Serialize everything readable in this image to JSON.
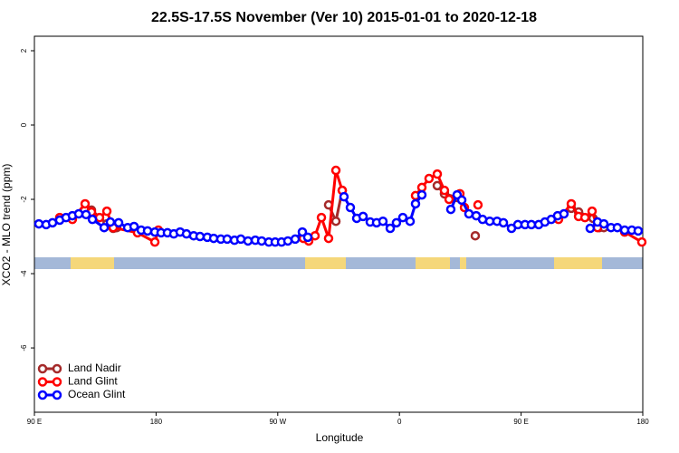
{
  "chart_data": {
    "type": "line",
    "title": "22.5S-17.5S November (Ver 10)   2015-01-01 to 2020-12-18",
    "xlabel": "Longitude",
    "ylabel": "XCO2 - MLO trend (ppm)",
    "xlim": [
      90,
      540
    ],
    "ylim": [
      -7.73,
      2.39
    ],
    "xticks": [
      {
        "value": 90,
        "label": "90 E"
      },
      {
        "value": 180,
        "label": "180"
      },
      {
        "value": 270,
        "label": "90 W"
      },
      {
        "value": 360,
        "label": "0"
      },
      {
        "value": 450,
        "label": "90 E"
      },
      {
        "value": 540,
        "label": "180"
      }
    ],
    "yticks": [
      -6,
      -4,
      -2,
      0,
      2
    ],
    "legend": "bottomleft",
    "series": [
      {
        "name": "Land Nadir",
        "color": "#a52a2a",
        "x": [
          132.2,
          143.6,
          148.3,
          150.9,
          null,
          307.6,
          313.0,
          317.7,
          null,
          388.0,
          393.3,
          402.7,
          null,
          416.1,
          null,
          487.1,
          492.5,
          503.2,
          507.9,
          511.2
        ],
        "values": [
          -2.29,
          -2.66,
          -2.78,
          -2.76,
          null,
          -2.15,
          -2.59,
          -1.76,
          null,
          -1.63,
          -1.85,
          -1.95,
          null,
          -2.98,
          null,
          -2.24,
          -2.34,
          -2.51,
          -2.76,
          -2.76
        ]
      },
      {
        "name": "Land Glint",
        "color": "#ff0000",
        "x": [
          108.7,
          118.1,
          127.5,
          132.2,
          138.2,
          143.6,
          148.3,
          166.3,
          179.1,
          181.7,
          null,
          288.9,
          292.9,
          297.6,
          302.3,
          307.6,
          313.0,
          317.7,
          null,
          371.9,
          376.6,
          381.9,
          388.0,
          393.3,
          396.7,
          404.7,
          408.1,
          null,
          418.1,
          null,
          477.7,
          487.1,
          492.5,
          497.2,
          502.5,
          506.5,
          null,
          526.6,
          539.3
        ],
        "values": [
          -2.49,
          -2.54,
          -2.12,
          -2.34,
          -2.49,
          -2.32,
          -2.76,
          -2.9,
          -3.15,
          -2.83,
          null,
          -3.05,
          -3.12,
          -2.98,
          -2.49,
          -3.05,
          -1.22,
          -1.76,
          null,
          -1.9,
          -1.68,
          -1.44,
          -1.32,
          -1.76,
          -2.0,
          -1.85,
          -2.22,
          null,
          -2.15,
          null,
          -2.54,
          -2.12,
          -2.46,
          -2.49,
          -2.32,
          -2.76,
          null,
          -2.88,
          -3.15
        ]
      },
      {
        "name": "Ocean Glint",
        "color": "#0000ff",
        "x": [
          93.3,
          98.7,
          103.4,
          108.7,
          113.4,
          118.1,
          122.8,
          128.2,
          132.9,
          141.6,
          146.2,
          152.3,
          159.0,
          163.7,
          169.0,
          173.7,
          179.1,
          183.7,
          188.4,
          193.1,
          197.8,
          202.5,
          207.8,
          212.5,
          217.9,
          222.6,
          227.9,
          232.6,
          238.0,
          242.7,
          248.0,
          253.4,
          258.1,
          263.4,
          268.1,
          272.8,
          277.5,
          282.9,
          288.2,
          292.2,
          null,
          319.0,
          323.7,
          328.4,
          333.1,
          338.4,
          343.1,
          347.8,
          353.2,
          357.8,
          362.5,
          367.9,
          371.9,
          376.6,
          null,
          398.0,
          402.7,
          406.1,
          411.4,
          416.8,
          421.5,
          426.8,
          432.2,
          436.9,
          442.9,
          447.6,
          452.9,
          457.6,
          463.0,
          467.6,
          472.3,
          477.0,
          481.7,
          null,
          501.1,
          506.5,
          511.2,
          516.5,
          521.2,
          526.6,
          531.9,
          536.6
        ],
        "values": [
          -2.66,
          -2.68,
          -2.63,
          -2.56,
          -2.49,
          -2.44,
          -2.39,
          -2.41,
          -2.54,
          -2.76,
          -2.61,
          -2.63,
          -2.76,
          -2.73,
          -2.83,
          -2.85,
          -2.88,
          -2.9,
          -2.9,
          -2.93,
          -2.88,
          -2.93,
          -2.98,
          -3.0,
          -3.02,
          -3.05,
          -3.07,
          -3.07,
          -3.1,
          -3.07,
          -3.12,
          -3.1,
          -3.12,
          -3.15,
          -3.15,
          -3.15,
          -3.12,
          -3.07,
          -2.88,
          -3.02,
          null,
          -1.93,
          -2.22,
          -2.51,
          -2.46,
          -2.61,
          -2.63,
          -2.59,
          -2.78,
          -2.63,
          -2.49,
          -2.59,
          -2.12,
          -1.88,
          null,
          -2.27,
          -1.88,
          -2.02,
          -2.39,
          -2.44,
          -2.54,
          -2.59,
          -2.59,
          -2.63,
          -2.78,
          -2.68,
          -2.68,
          -2.68,
          -2.68,
          -2.61,
          -2.54,
          -2.44,
          -2.39,
          null,
          -2.78,
          -2.61,
          -2.66,
          -2.76,
          -2.76,
          -2.83,
          -2.83,
          -2.85
        ]
      }
    ]
  }
}
